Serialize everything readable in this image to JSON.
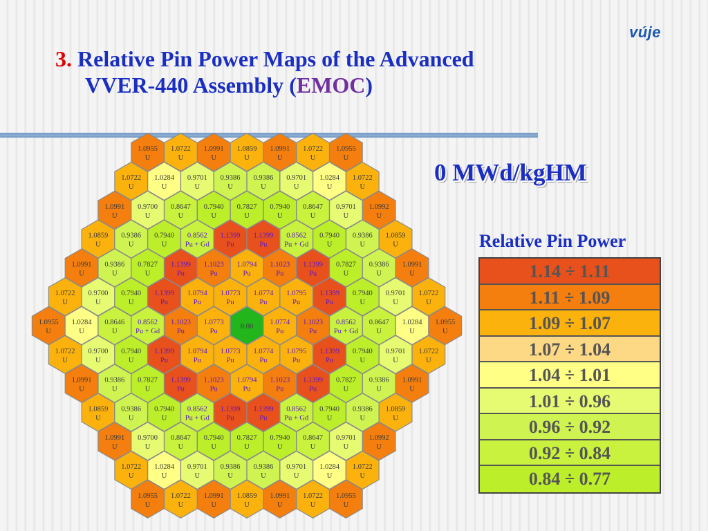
{
  "logo": "vúje",
  "title": {
    "number": "3.",
    "line1": "Relative Pin Power Maps of the Advanced",
    "line2_pre": "VVER-440 Assembly (",
    "line2_emoc": "EMOC",
    "line2_post": ")"
  },
  "burnup_label": "0 MWd/kgHM",
  "legend": {
    "title": "Relative Pin Power",
    "rows": [
      {
        "label": "1.14 ÷  1.11",
        "color": "#e8501c"
      },
      {
        "label": "1.11 ÷  1.09",
        "color": "#f47e0e"
      },
      {
        "label": "1.09 ÷  1.07",
        "color": "#fbb20d"
      },
      {
        "label": "1.07 ÷  1.04",
        "color": "#fdd885"
      },
      {
        "label": "1.04 ÷  1.01",
        "color": "#ffff85"
      },
      {
        "label": "1.01 ÷  0.96",
        "color": "#e6fa72"
      },
      {
        "label": "0.96 ÷  0.92",
        "color": "#cff452"
      },
      {
        "label": "0.92 ÷  0.84",
        "color": "#c8f23e"
      },
      {
        "label": "0.84 ÷  0.77",
        "color": "#bcee2a"
      }
    ]
  },
  "center_color": "#22b51c",
  "pu_text_color": "#5a16c8",
  "map_rows": [
    [
      [
        "1.0955",
        "U"
      ],
      [
        "1.0722",
        "U"
      ],
      [
        "1.0991",
        "U"
      ],
      [
        "1.0859",
        "U"
      ],
      [
        "1.0991",
        "U"
      ],
      [
        "1.0722",
        "U"
      ],
      [
        "1.0955",
        "U"
      ]
    ],
    [
      [
        "1.0722",
        "U"
      ],
      [
        "1.0284",
        "U"
      ],
      [
        "0.9701",
        "U"
      ],
      [
        "0.9386",
        "U"
      ],
      [
        "0.9386",
        "U"
      ],
      [
        "0.9701",
        "U"
      ],
      [
        "1.0284",
        "U"
      ],
      [
        "1.0722",
        "U"
      ]
    ],
    [
      [
        "1.0991",
        "U"
      ],
      [
        "0.9700",
        "U"
      ],
      [
        "0.8647",
        "U"
      ],
      [
        "0.7940",
        "U"
      ],
      [
        "0.7827",
        "U"
      ],
      [
        "0.7940",
        "U"
      ],
      [
        "0.8647",
        "U"
      ],
      [
        "0.9701",
        "U"
      ],
      [
        "1.0992",
        "U"
      ]
    ],
    [
      [
        "1.0859",
        "U"
      ],
      [
        "0.9386",
        "U"
      ],
      [
        "0.7940",
        "U"
      ],
      [
        "0.8562",
        "Pu + Gd"
      ],
      [
        "1.1399",
        "Pu"
      ],
      [
        "1.1399",
        "Pu"
      ],
      [
        "0.8562",
        "Pu + Gd"
      ],
      [
        "0.7940",
        "U"
      ],
      [
        "0.9386",
        "U"
      ],
      [
        "1.0859",
        "U"
      ]
    ],
    [
      [
        "1.0991",
        "U"
      ],
      [
        "0.9386",
        "U"
      ],
      [
        "0.7827",
        "U"
      ],
      [
        "1.1399",
        "Pu"
      ],
      [
        "1.1023",
        "Pu"
      ],
      [
        "1.0794",
        "Pu"
      ],
      [
        "1.1023",
        "Pu"
      ],
      [
        "1.1399",
        "Pu"
      ],
      [
        "0.7827",
        "U"
      ],
      [
        "0.9386",
        "U"
      ],
      [
        "1.0991",
        "U"
      ]
    ],
    [
      [
        "1.0722",
        "U"
      ],
      [
        "0.9700",
        "U"
      ],
      [
        "0.7940",
        "U"
      ],
      [
        "1.1399",
        "Pu"
      ],
      [
        "1.0794",
        "Pu"
      ],
      [
        "1.0773",
        "Pu"
      ],
      [
        "1.0774",
        "Pu"
      ],
      [
        "1.0795",
        "Pu"
      ],
      [
        "1.1399",
        "Pu"
      ],
      [
        "0.7940",
        "U"
      ],
      [
        "0.9701",
        "U"
      ],
      [
        "1.0722",
        "U"
      ]
    ],
    [
      [
        "1.0955",
        "U"
      ],
      [
        "1.0284",
        "U"
      ],
      [
        "0.8646",
        "U"
      ],
      [
        "0.8562",
        "Pu + Gd"
      ],
      [
        "1.1023",
        "Pu"
      ],
      [
        "1.0773",
        "Pu"
      ],
      [
        "0.00",
        ""
      ],
      [
        "1.0774",
        "Pu"
      ],
      [
        "1.1023",
        "Pu"
      ],
      [
        "0.8562",
        "Pu + Gd"
      ],
      [
        "0.8647",
        "U"
      ],
      [
        "1.0284",
        "U"
      ],
      [
        "1.0955",
        "U"
      ]
    ],
    [
      [
        "1.0722",
        "U"
      ],
      [
        "0.9700",
        "U"
      ],
      [
        "0.7940",
        "U"
      ],
      [
        "1.1399",
        "Pu"
      ],
      [
        "1.0794",
        "Pu"
      ],
      [
        "1.0773",
        "Pu"
      ],
      [
        "1.0774",
        "Pu"
      ],
      [
        "1.0795",
        "Pu"
      ],
      [
        "1.1399",
        "Pu"
      ],
      [
        "0.7940",
        "U"
      ],
      [
        "0.9701",
        "U"
      ],
      [
        "1.0722",
        "U"
      ]
    ],
    [
      [
        "1.0991",
        "U"
      ],
      [
        "0.9386",
        "U"
      ],
      [
        "0.7827",
        "U"
      ],
      [
        "1.1399",
        "Pu"
      ],
      [
        "1.1023",
        "Pu"
      ],
      [
        "1.0794",
        "Pu"
      ],
      [
        "1.1023",
        "Pu"
      ],
      [
        "1.1399",
        "Pu"
      ],
      [
        "0.7827",
        "U"
      ],
      [
        "0.9386",
        "U"
      ],
      [
        "1.0991",
        "U"
      ]
    ],
    [
      [
        "1.0859",
        "U"
      ],
      [
        "0.9386",
        "U"
      ],
      [
        "0.7940",
        "U"
      ],
      [
        "0.8562",
        "Pu + Gd"
      ],
      [
        "1.1399",
        "Pu"
      ],
      [
        "1.1399",
        "Pu"
      ],
      [
        "0.8562",
        "Pu + Gd"
      ],
      [
        "0.7940",
        "U"
      ],
      [
        "0.9386",
        "U"
      ],
      [
        "1.0859",
        "U"
      ]
    ],
    [
      [
        "1.0991",
        "U"
      ],
      [
        "0.9700",
        "U"
      ],
      [
        "0.8647",
        "U"
      ],
      [
        "0.7940",
        "U"
      ],
      [
        "0.7827",
        "U"
      ],
      [
        "0.7940",
        "U"
      ],
      [
        "0.8647",
        "U"
      ],
      [
        "0.9701",
        "U"
      ],
      [
        "1.0992",
        "U"
      ]
    ],
    [
      [
        "1.0722",
        "U"
      ],
      [
        "1.0284",
        "U"
      ],
      [
        "0.9701",
        "U"
      ],
      [
        "0.9386",
        "U"
      ],
      [
        "0.9386",
        "U"
      ],
      [
        "0.9701",
        "U"
      ],
      [
        "1.0284",
        "U"
      ],
      [
        "1.0722",
        "U"
      ]
    ],
    [
      [
        "1.0955",
        "U"
      ],
      [
        "1.0722",
        "U"
      ],
      [
        "1.0991",
        "U"
      ],
      [
        "1.0859",
        "U"
      ],
      [
        "1.0991",
        "U"
      ],
      [
        "1.0722",
        "U"
      ],
      [
        "1.0955",
        "U"
      ]
    ]
  ]
}
